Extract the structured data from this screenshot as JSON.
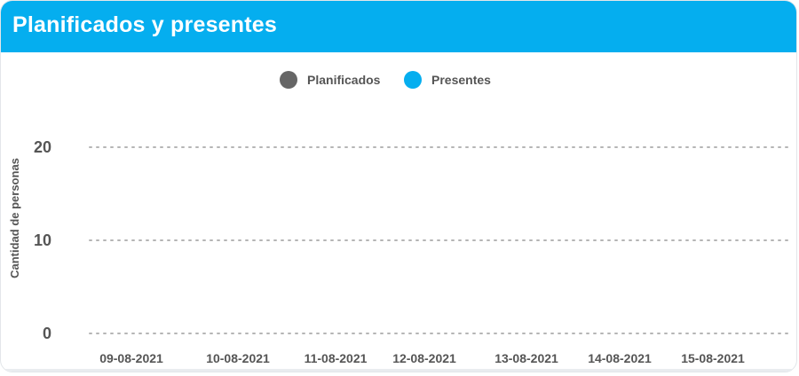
{
  "header": {
    "title": "Planificados y presentes",
    "accent_color": "#05aeef"
  },
  "chart_data": {
    "type": "bar",
    "categories": [
      "09-08-2021",
      "10-08-2021",
      "11-08-2021",
      "12-08-2021",
      "13-08-2021",
      "14-08-2021",
      "15-08-2021"
    ],
    "series": [
      {
        "name": "Planificados",
        "color": "#666666",
        "values": [
          0,
          0,
          0,
          0,
          0,
          0,
          0
        ]
      },
      {
        "name": "Presentes",
        "color": "#05aeef",
        "values": [
          0,
          0,
          0,
          0,
          0,
          0,
          0
        ]
      }
    ],
    "ylabel": "Cantidad de personas",
    "xlabel": "",
    "ylim": [
      0,
      20
    ],
    "yticks": [
      0,
      10,
      20
    ],
    "grid": true,
    "grid_style": "dotted",
    "legend_position": "top-center"
  }
}
